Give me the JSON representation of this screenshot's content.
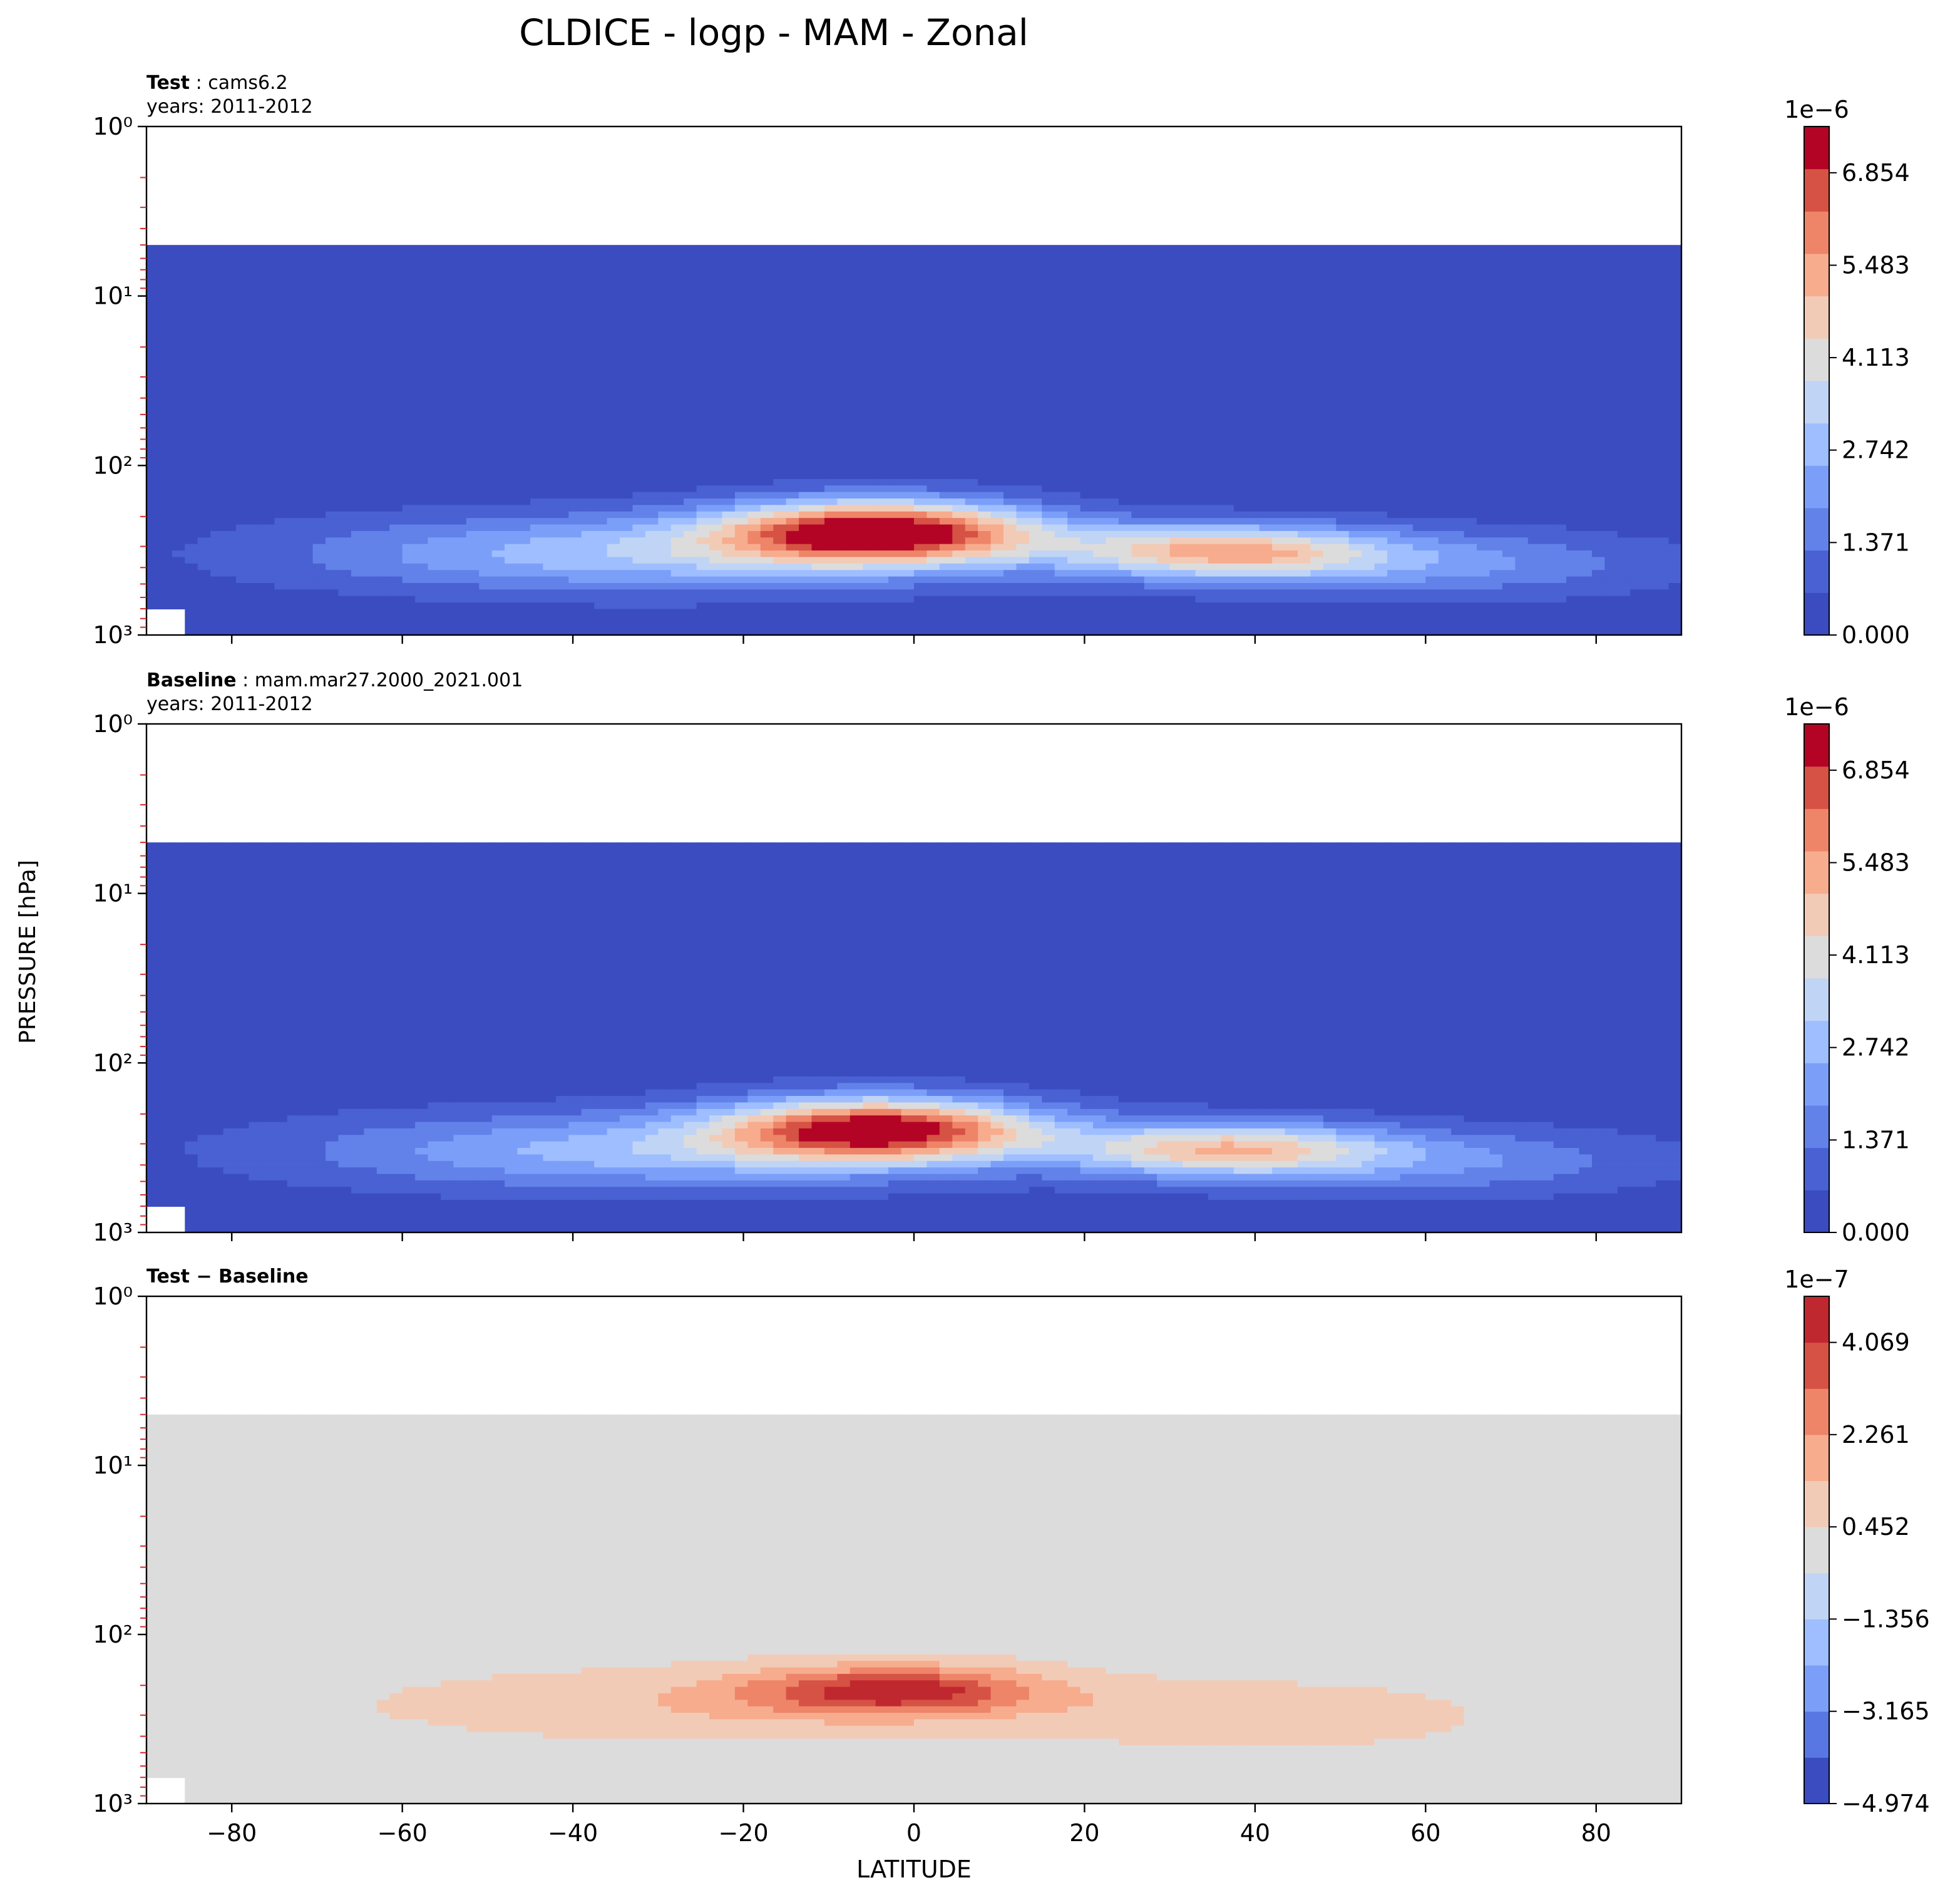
{
  "figure": {
    "title": "CLDICE - logp - MAM - Zonal",
    "ylabel": "PRESSURE [hPa]",
    "xlabel": "LATITUDE"
  },
  "chart_data": [
    {
      "type": "contourf",
      "panel": "test",
      "title_bold": "Test",
      "title_rest": ": cams6.2",
      "subtitle": "years: 2011-2012",
      "x": {
        "label": "LATITUDE",
        "range": [
          -90,
          90
        ],
        "ticks": [
          -80,
          -60,
          -40,
          -20,
          0,
          20,
          40,
          60,
          80
        ],
        "tick_labels": [
          "−80",
          "−60",
          "−40",
          "−20",
          "0",
          "20",
          "40",
          "60",
          "80"
        ]
      },
      "y": {
        "label": "PRESSURE [hPa]",
        "scale": "log",
        "inverted": true,
        "range": [
          1,
          1000
        ],
        "ticks": [
          1,
          10,
          100,
          1000
        ],
        "tick_labels": [
          "10⁰",
          "10¹",
          "10²",
          "10³"
        ],
        "data_top_hPa": 5
      },
      "colorbar": {
        "offset_label": "1e−6",
        "scale": 1e-06,
        "min": 0.0,
        "max": 7.54,
        "levels": 12,
        "ticks": [
          0.0,
          1.371,
          2.742,
          4.113,
          5.483,
          6.854
        ],
        "tick_labels": [
          "0.000",
          "1.371",
          "2.742",
          "4.113",
          "5.483",
          "6.854"
        ]
      },
      "background_value": 0.2,
      "features": [
        {
          "lat": -4,
          "p_hPa": 245,
          "peak": 7.3,
          "sigma_lat": 13,
          "sigma_logp": 0.13
        },
        {
          "lat": -32,
          "p_hPa": 330,
          "peak": 3.0,
          "sigma_lat": 28,
          "sigma_logp": 0.16
        },
        {
          "lat": 36,
          "p_hPa": 320,
          "peak": 4.6,
          "sigma_lat": 13,
          "sigma_logp": 0.11
        },
        {
          "lat": 60,
          "p_hPa": 380,
          "peak": 2.0,
          "sigma_lat": 20,
          "sigma_logp": 0.14
        }
      ]
    },
    {
      "type": "contourf",
      "panel": "baseline",
      "title_bold": "Baseline",
      "title_rest": ": mam.mar27.2000_2021.001",
      "subtitle": "years: 2011-2012",
      "x": {
        "label": "LATITUDE",
        "range": [
          -90,
          90
        ],
        "ticks": [
          -80,
          -60,
          -40,
          -20,
          0,
          20,
          40,
          60,
          80
        ],
        "tick_labels": [
          "−80",
          "−60",
          "−40",
          "−20",
          "0",
          "20",
          "40",
          "60",
          "80"
        ]
      },
      "y": {
        "label": "PRESSURE [hPa]",
        "scale": "log",
        "inverted": true,
        "range": [
          1,
          1000
        ],
        "ticks": [
          1,
          10,
          100,
          1000
        ],
        "tick_labels": [
          "10⁰",
          "10¹",
          "10²",
          "10³"
        ],
        "data_top_hPa": 5
      },
      "colorbar": {
        "offset_label": "1e−6",
        "scale": 1e-06,
        "min": 0.0,
        "max": 7.54,
        "levels": 12,
        "ticks": [
          0.0,
          1.371,
          2.742,
          4.113,
          5.483,
          6.854
        ],
        "tick_labels": [
          "0.000",
          "1.371",
          "2.742",
          "4.113",
          "5.483",
          "6.854"
        ]
      },
      "background_value": 0.2,
      "features": [
        {
          "lat": -4,
          "p_hPa": 245,
          "peak": 6.9,
          "sigma_lat": 13,
          "sigma_logp": 0.13
        },
        {
          "lat": -32,
          "p_hPa": 330,
          "peak": 2.8,
          "sigma_lat": 28,
          "sigma_logp": 0.16
        },
        {
          "lat": 36,
          "p_hPa": 320,
          "peak": 4.3,
          "sigma_lat": 13,
          "sigma_logp": 0.11
        },
        {
          "lat": 60,
          "p_hPa": 380,
          "peak": 1.9,
          "sigma_lat": 20,
          "sigma_logp": 0.14
        }
      ]
    },
    {
      "type": "contourf",
      "panel": "difference",
      "title_bold": "Test − Baseline",
      "title_rest": "",
      "subtitle": "",
      "x": {
        "label": "LATITUDE",
        "range": [
          -90,
          90
        ],
        "ticks": [
          -80,
          -60,
          -40,
          -20,
          0,
          20,
          40,
          60,
          80
        ],
        "tick_labels": [
          "−80",
          "−60",
          "−40",
          "−20",
          "0",
          "20",
          "40",
          "60",
          "80"
        ]
      },
      "y": {
        "label": "PRESSURE [hPa]",
        "scale": "log",
        "inverted": true,
        "range": [
          1,
          1000
        ],
        "ticks": [
          1,
          10,
          100,
          1000
        ],
        "tick_labels": [
          "10⁰",
          "10¹",
          "10²",
          "10³"
        ],
        "data_top_hPa": 5
      },
      "colorbar": {
        "offset_label": "1e−7",
        "scale": 1e-07,
        "min": -4.974,
        "max": 4.973,
        "levels": 11,
        "ticks": [
          -4.974,
          -3.165,
          -1.356,
          0.452,
          2.261,
          4.069
        ],
        "tick_labels": [
          "−4.974",
          "−3.165",
          "−1.356",
          "0.452",
          "2.261",
          "4.069"
        ]
      },
      "background_value": 0.1,
      "features": [
        {
          "lat": -2,
          "p_hPa": 215,
          "peak": 4.3,
          "sigma_lat": 12,
          "sigma_logp": 0.1
        },
        {
          "lat": -25,
          "p_hPa": 260,
          "peak": 1.2,
          "sigma_lat": 25,
          "sigma_logp": 0.14
        },
        {
          "lat": 40,
          "p_hPa": 300,
          "peak": 1.3,
          "sigma_lat": 16,
          "sigma_logp": 0.12
        }
      ]
    }
  ],
  "colors": {
    "coolwarm": [
      "#3b4cc0",
      "#4961d2",
      "#6282ea",
      "#7b9ff9",
      "#9ebeff",
      "#c0d4f5",
      "#dddcdc",
      "#f2cbb7",
      "#f7ac8e",
      "#ee8468",
      "#d65244",
      "#b40426"
    ],
    "diff": [
      "#3b4cc0",
      "#5977e3",
      "#7b9ff9",
      "#9ebeff",
      "#c0d4f5",
      "#dddcdc",
      "#f2cbb7",
      "#f7ac8e",
      "#ee8468",
      "#d65244",
      "#c0282f"
    ]
  }
}
